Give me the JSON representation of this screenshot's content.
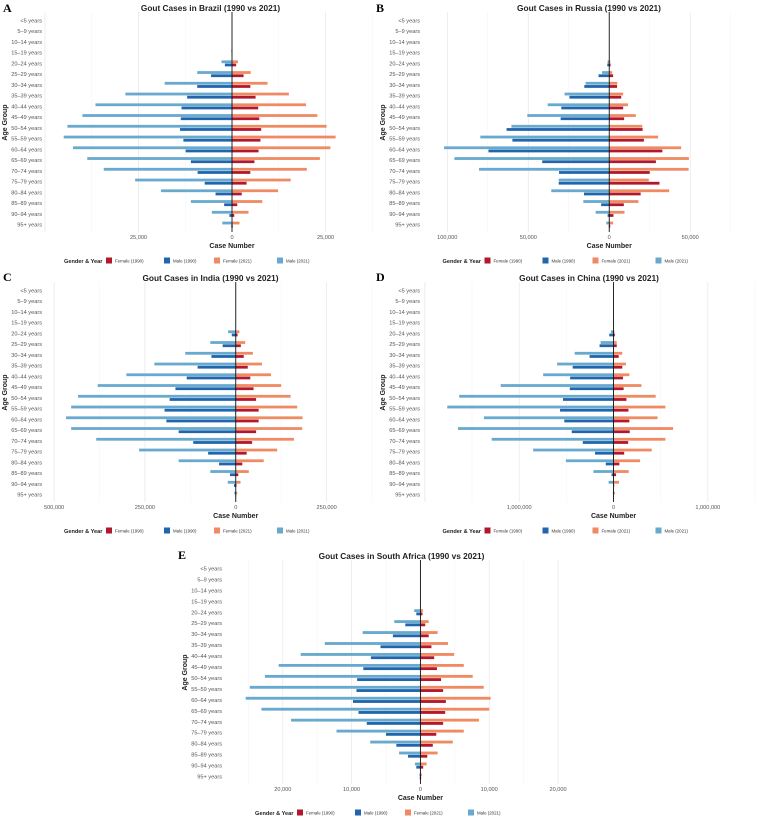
{
  "legend": {
    "title": "Gender & Year",
    "items": [
      {
        "key": "f1990",
        "label": "Female (1990)",
        "color": "#B2182B"
      },
      {
        "key": "m1990",
        "label": "Male (1990)",
        "color": "#2166AC"
      },
      {
        "key": "f2021",
        "label": "Female (2021)",
        "color": "#EF8A62"
      },
      {
        "key": "m2021",
        "label": "Male (2021)",
        "color": "#67A9CF"
      }
    ]
  },
  "chart_data": [
    {
      "panel": "A",
      "type": "bar",
      "orientation": "horizontal-pyramid",
      "title": "Gout Cases in Brazil (1990 vs 2021)",
      "xlabel": "Case Number",
      "ylabel": "Age Group",
      "xlim": [
        -50000,
        38500
      ],
      "xticks": [
        -25000,
        0,
        25000
      ],
      "xtick_labels": [
        "25,000",
        "0",
        "25,000"
      ],
      "grid": true,
      "categories": [
        "<5 years",
        "5–9 years",
        "10–14 years",
        "15–19 years",
        "20–24 years",
        "25–29 years",
        "30–34 years",
        "35–39 years",
        "40–44 years",
        "45–49 years",
        "50–54 years",
        "55–59 years",
        "60–64 years",
        "65–69 years",
        "70–74 years",
        "75–79 years",
        "80–84 years",
        "85–89 years",
        "90–94 years",
        "95+ years"
      ],
      "series": {
        "m2021": [
          0,
          0,
          0,
          200,
          2800,
          9300,
          18000,
          28500,
          36500,
          40000,
          44000,
          45000,
          42500,
          38700,
          34300,
          25900,
          19000,
          11000,
          5400,
          2600
        ],
        "m1990": [
          0,
          0,
          0,
          100,
          1900,
          5600,
          9300,
          12000,
          13500,
          13700,
          13900,
          13000,
          12400,
          11000,
          9200,
          7300,
          4400,
          2100,
          700,
          200
        ],
        "f2021": [
          0,
          0,
          0,
          100,
          1600,
          5000,
          9500,
          15200,
          19800,
          22800,
          25300,
          27700,
          26300,
          23500,
          20000,
          15700,
          12300,
          8100,
          4400,
          2000
        ],
        "f1990": [
          0,
          0,
          0,
          50,
          1100,
          3100,
          4900,
          6300,
          7000,
          7300,
          7800,
          7600,
          7100,
          6000,
          4900,
          3900,
          2600,
          1400,
          600,
          200
        ]
      }
    },
    {
      "panel": "B",
      "type": "bar",
      "orientation": "horizontal-pyramid",
      "title": "Gout Cases in Russia (1990 vs 2021)",
      "xlabel": "Case Number",
      "ylabel": "Age Group",
      "xlim": [
        -115000,
        90000
      ],
      "xticks": [
        -100000,
        -50000,
        0,
        50000
      ],
      "xtick_labels": [
        "100,000",
        "50,000",
        "0",
        "50,000"
      ],
      "grid": true,
      "categories": [
        "<5 years",
        "5–9 years",
        "10–14 years",
        "15–19 years",
        "20–24 years",
        "25–29 years",
        "30–34 years",
        "35–39 years",
        "40–44 years",
        "45–49 years",
        "50–54 years",
        "55–59 years",
        "60–64 years",
        "65–69 years",
        "70–74 years",
        "75–79 years",
        "80–84 years",
        "85–89 years",
        "90–94 years",
        "95+ years"
      ],
      "series": {
        "m2021": [
          0,
          0,
          0,
          0,
          1000,
          4400,
          14600,
          27600,
          38000,
          50600,
          60400,
          79600,
          102000,
          95600,
          80400,
          31200,
          35800,
          16000,
          8400,
          1800
        ],
        "m1990": [
          0,
          0,
          0,
          0,
          1200,
          6600,
          15400,
          24600,
          29600,
          30000,
          63400,
          59800,
          74600,
          41400,
          31000,
          31200,
          15600,
          5000,
          1000,
          200
        ],
        "f2021": [
          0,
          0,
          0,
          0,
          600,
          1800,
          5000,
          8600,
          11600,
          16400,
          20400,
          30200,
          44400,
          49200,
          49000,
          24400,
          37000,
          18000,
          9400,
          2400
        ],
        "f1990": [
          0,
          0,
          0,
          0,
          800,
          2400,
          4800,
          7400,
          8600,
          9200,
          20600,
          21400,
          32800,
          28800,
          25000,
          31000,
          19400,
          9000,
          2600,
          600
        ]
      }
    },
    {
      "panel": "C",
      "type": "bar",
      "orientation": "horizontal-pyramid",
      "title": "Gout Cases in India (1990 vs 2021)",
      "xlabel": "Case Number",
      "ylabel": "Age Group",
      "xlim": [
        -525000,
        386000
      ],
      "xticks": [
        -500000,
        -250000,
        0,
        250000
      ],
      "xtick_labels": [
        "500,000",
        "250,000",
        "0",
        "250,000"
      ],
      "grid": true,
      "categories": [
        "<5 years",
        "5–9 years",
        "10–14 years",
        "15–19 years",
        "20–24 years",
        "25–29 years",
        "30–34 years",
        "35–39 years",
        "40–44 years",
        "45–49 years",
        "50–54 years",
        "55–59 years",
        "60–64 years",
        "65–69 years",
        "70–74 years",
        "75–79 years",
        "80–84 years",
        "85–89 years",
        "90–94 years",
        "95+ years"
      ],
      "series": {
        "m2021": [
          0,
          0,
          0,
          1000,
          21000,
          70000,
          139000,
          224000,
          301000,
          380000,
          434000,
          453000,
          467000,
          453000,
          384000,
          266000,
          157000,
          70000,
          22000,
          4000
        ],
        "m1990": [
          0,
          0,
          0,
          500,
          11000,
          36000,
          67000,
          105000,
          135000,
          166000,
          182000,
          196000,
          191000,
          157000,
          117000,
          76000,
          46000,
          16000,
          5000,
          1000
        ],
        "f2021": [
          0,
          0,
          0,
          500,
          10000,
          26000,
          47000,
          72000,
          97000,
          125000,
          151000,
          169000,
          184000,
          183000,
          160000,
          114000,
          77000,
          36000,
          13000,
          4000
        ],
        "f1990": [
          0,
          0,
          0,
          300,
          5000,
          14000,
          22000,
          33000,
          40000,
          49000,
          56000,
          63000,
          63000,
          56000,
          45000,
          30000,
          18000,
          7000,
          2000,
          1000
        ]
      }
    },
    {
      "panel": "D",
      "type": "bar",
      "orientation": "horizontal-pyramid",
      "title": "Gout Cases in China (1990 vs 2021)",
      "xlabel": "Case Number",
      "ylabel": "Age Group",
      "xlim": [
        -2020000,
        1500000
      ],
      "xticks": [
        -1000000,
        0,
        1000000
      ],
      "xtick_labels": [
        "1,000,000",
        "0",
        "1,000,000"
      ],
      "grid": true,
      "categories": [
        "<5 years",
        "5–9 years",
        "10–14 years",
        "15–19 years",
        "20–24 years",
        "25–29 years",
        "30–34 years",
        "35–39 years",
        "40–44 years",
        "45–49 years",
        "50–54 years",
        "55–59 years",
        "60–64 years",
        "65–69 years",
        "70–74 years",
        "75–79 years",
        "80–84 years",
        "85–89 years",
        "90–94 years",
        "95+ years"
      ],
      "series": {
        "m2021": [
          0,
          0,
          0,
          0,
          27000,
          137000,
          412000,
          598000,
          746000,
          1196000,
          1636000,
          1763000,
          1374000,
          1649000,
          1292000,
          852000,
          505000,
          213000,
          52000,
          7000
        ],
        "m1990": [
          0,
          0,
          0,
          0,
          45000,
          148000,
          254000,
          433000,
          460000,
          464000,
          536000,
          567000,
          522000,
          443000,
          326000,
          196000,
          82000,
          21000,
          3000,
          0
        ],
        "f2021": [
          0,
          0,
          0,
          0,
          10000,
          34000,
          93000,
          131000,
          168000,
          296000,
          447000,
          550000,
          467000,
          632000,
          550000,
          405000,
          282000,
          161000,
          58000,
          14000
        ],
        "f1990": [
          0,
          0,
          0,
          0,
          14000,
          34000,
          55000,
          93000,
          100000,
          107000,
          137000,
          158000,
          168000,
          172000,
          155000,
          113000,
          62000,
          27000,
          7000,
          3000
        ]
      }
    },
    {
      "panel": "E",
      "type": "bar",
      "orientation": "horizontal-pyramid",
      "title": "Gout Cases in South Africa (1990 vs 2021)",
      "xlabel": "Case Number",
      "ylabel": "Age Group",
      "xlim": [
        -28400,
        22900
      ],
      "xticks": [
        -20000,
        -10000,
        0,
        10000,
        20000
      ],
      "xtick_labels": [
        "20,000",
        "10,000",
        "0",
        "10,000",
        "20,000"
      ],
      "grid": true,
      "categories": [
        "<5 years",
        "5–9 years",
        "10–14 years",
        "15–19 years",
        "20–24 years",
        "25–29 years",
        "30–34 years",
        "35–39 years",
        "40–44 years",
        "45–49 years",
        "50–54 years",
        "55–59 years",
        "60–64 years",
        "65–69 years",
        "70–74 years",
        "75–79 years",
        "80–84 years",
        "85–89 years",
        "90–94 years",
        "95+ years"
      ],
      "series": {
        "m2021": [
          0,
          0,
          0,
          0,
          900,
          3800,
          8400,
          13900,
          17400,
          20600,
          22600,
          24800,
          25400,
          23100,
          18800,
          12200,
          7300,
          3100,
          800,
          150
        ],
        "m1990": [
          0,
          0,
          0,
          0,
          600,
          2200,
          4000,
          5800,
          7200,
          8300,
          9200,
          9300,
          9800,
          9000,
          7800,
          5000,
          3500,
          1800,
          600,
          100
        ],
        "f2021": [
          0,
          0,
          0,
          0,
          350,
          1200,
          2500,
          4000,
          4900,
          6300,
          7600,
          9200,
          10200,
          10000,
          8500,
          6300,
          4700,
          2500,
          900,
          200
        ],
        "f1990": [
          0,
          0,
          0,
          0,
          300,
          700,
          1200,
          1600,
          2000,
          2400,
          3000,
          3300,
          3700,
          3600,
          3300,
          2300,
          1800,
          1000,
          400,
          100
        ]
      }
    }
  ]
}
